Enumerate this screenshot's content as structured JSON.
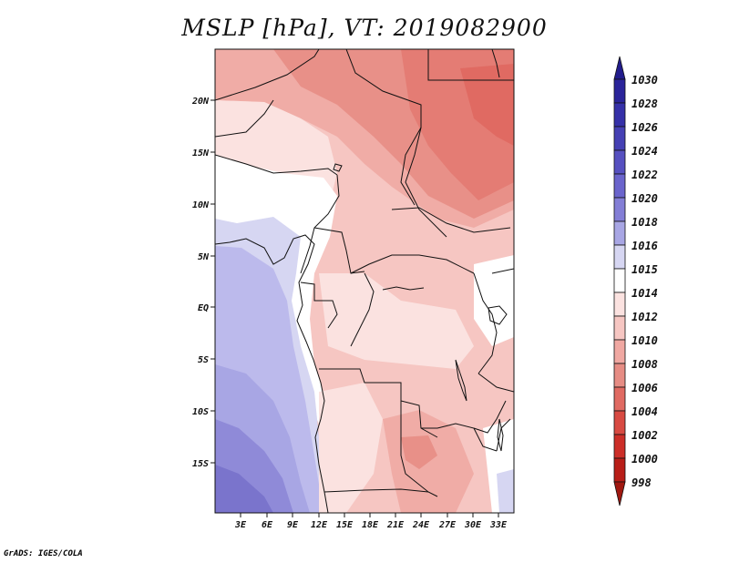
{
  "title": "MSLP [hPa], VT: 2019082900",
  "footer": "GrADS: IGES/COLA",
  "map": {
    "lat_labels": [
      "20N",
      "15N",
      "10N",
      "5N",
      "EQ",
      "5S",
      "10S",
      "15S"
    ],
    "lon_labels": [
      "3E",
      "6E",
      "9E",
      "12E",
      "15E",
      "18E",
      "21E",
      "24E",
      "27E",
      "30E",
      "33E"
    ]
  },
  "colorbar": {
    "levels": [
      "1030",
      "1028",
      "1026",
      "1024",
      "1022",
      "1020",
      "1018",
      "1016",
      "1015",
      "1014",
      "1012",
      "1010",
      "1008",
      "1006",
      "1004",
      "1002",
      "1000",
      "998"
    ],
    "colors": {
      "top_tip": "#221c8c",
      "b1028": "#2a249a",
      "b1026": "#3530a8",
      "b1024": "#4540b4",
      "b1022": "#5650c0",
      "b1020": "#6a64cc",
      "b1018": "#837ed6",
      "b1016": "#a8a6e4",
      "b1015": "#d6d6f2",
      "b1014": "#ffffff",
      "b1012": "#fbe2e0",
      "b1010": "#f6c6c2",
      "b1008": "#f0a8a2",
      "b1006": "#e68c84",
      "b1004": "#e06a62",
      "b1002": "#d84a42",
      "b1000": "#cc2e28",
      "b998": "#b81e18",
      "bottom_tip": "#a01810"
    }
  },
  "colors": {
    "very_low": "#e06a62",
    "low": "#e89088",
    "mid_low": "#f0aca6",
    "pink": "#f6c6c2",
    "light_pink": "#fbe2e0",
    "white": "#ffffff",
    "pale_blue": "#d6d6f2",
    "light_blue": "#bcbaec",
    "blue": "#a8a6e4",
    "med_blue": "#8f8ad8",
    "deep_blue": "#7a74cc"
  }
}
